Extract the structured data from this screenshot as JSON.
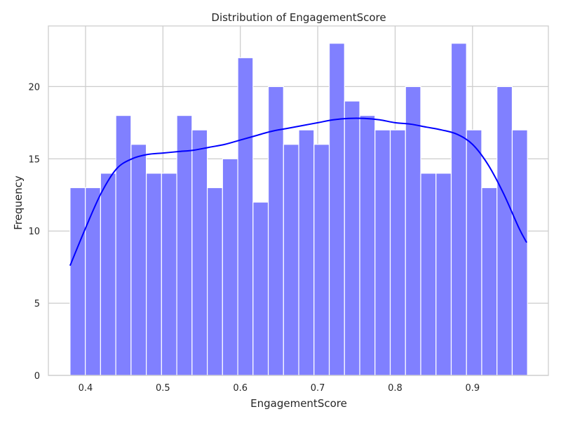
{
  "chart_data": {
    "type": "bar",
    "title": "Distribution of EngagementScore",
    "xlabel": "EngagementScore",
    "ylabel": "Frequency",
    "xlim": [
      0.352,
      0.998
    ],
    "ylim": [
      0,
      24.2
    ],
    "xticks": [
      0.4,
      0.5,
      0.6,
      0.7,
      0.8,
      0.9
    ],
    "xtick_labels": [
      "0.4",
      "0.5",
      "0.6",
      "0.7",
      "0.8",
      "0.9"
    ],
    "yticks": [
      0,
      5,
      10,
      15,
      20
    ],
    "ytick_labels": [
      "0",
      "5",
      "10",
      "15",
      "20"
    ],
    "grid": true,
    "bin_start": 0.38,
    "bin_width": 0.0197,
    "values": [
      13,
      13,
      14,
      18,
      16,
      14,
      14,
      18,
      17,
      13,
      15,
      22,
      12,
      20,
      16,
      17,
      16,
      23,
      19,
      18,
      17,
      17,
      20,
      14,
      14,
      23,
      17,
      13,
      20,
      17
    ],
    "kde": {
      "x": [
        0.38,
        0.4,
        0.42,
        0.44,
        0.46,
        0.48,
        0.5,
        0.52,
        0.54,
        0.56,
        0.58,
        0.6,
        0.62,
        0.64,
        0.66,
        0.68,
        0.7,
        0.72,
        0.74,
        0.76,
        0.78,
        0.8,
        0.82,
        0.84,
        0.86,
        0.88,
        0.9,
        0.92,
        0.94,
        0.96,
        0.97
      ],
      "y": [
        7.6,
        10.2,
        12.6,
        14.3,
        15.0,
        15.3,
        15.4,
        15.5,
        15.6,
        15.8,
        16.0,
        16.3,
        16.6,
        16.9,
        17.1,
        17.3,
        17.5,
        17.7,
        17.8,
        17.8,
        17.7,
        17.5,
        17.4,
        17.2,
        17.0,
        16.7,
        16.0,
        14.6,
        12.6,
        10.2,
        9.2
      ]
    },
    "colors": {
      "bar_fill": "#8080ff",
      "bar_edge": "#ffffff",
      "kde_line": "#0000ff",
      "grid": "#cccccc",
      "frame": "#cccccc"
    }
  }
}
